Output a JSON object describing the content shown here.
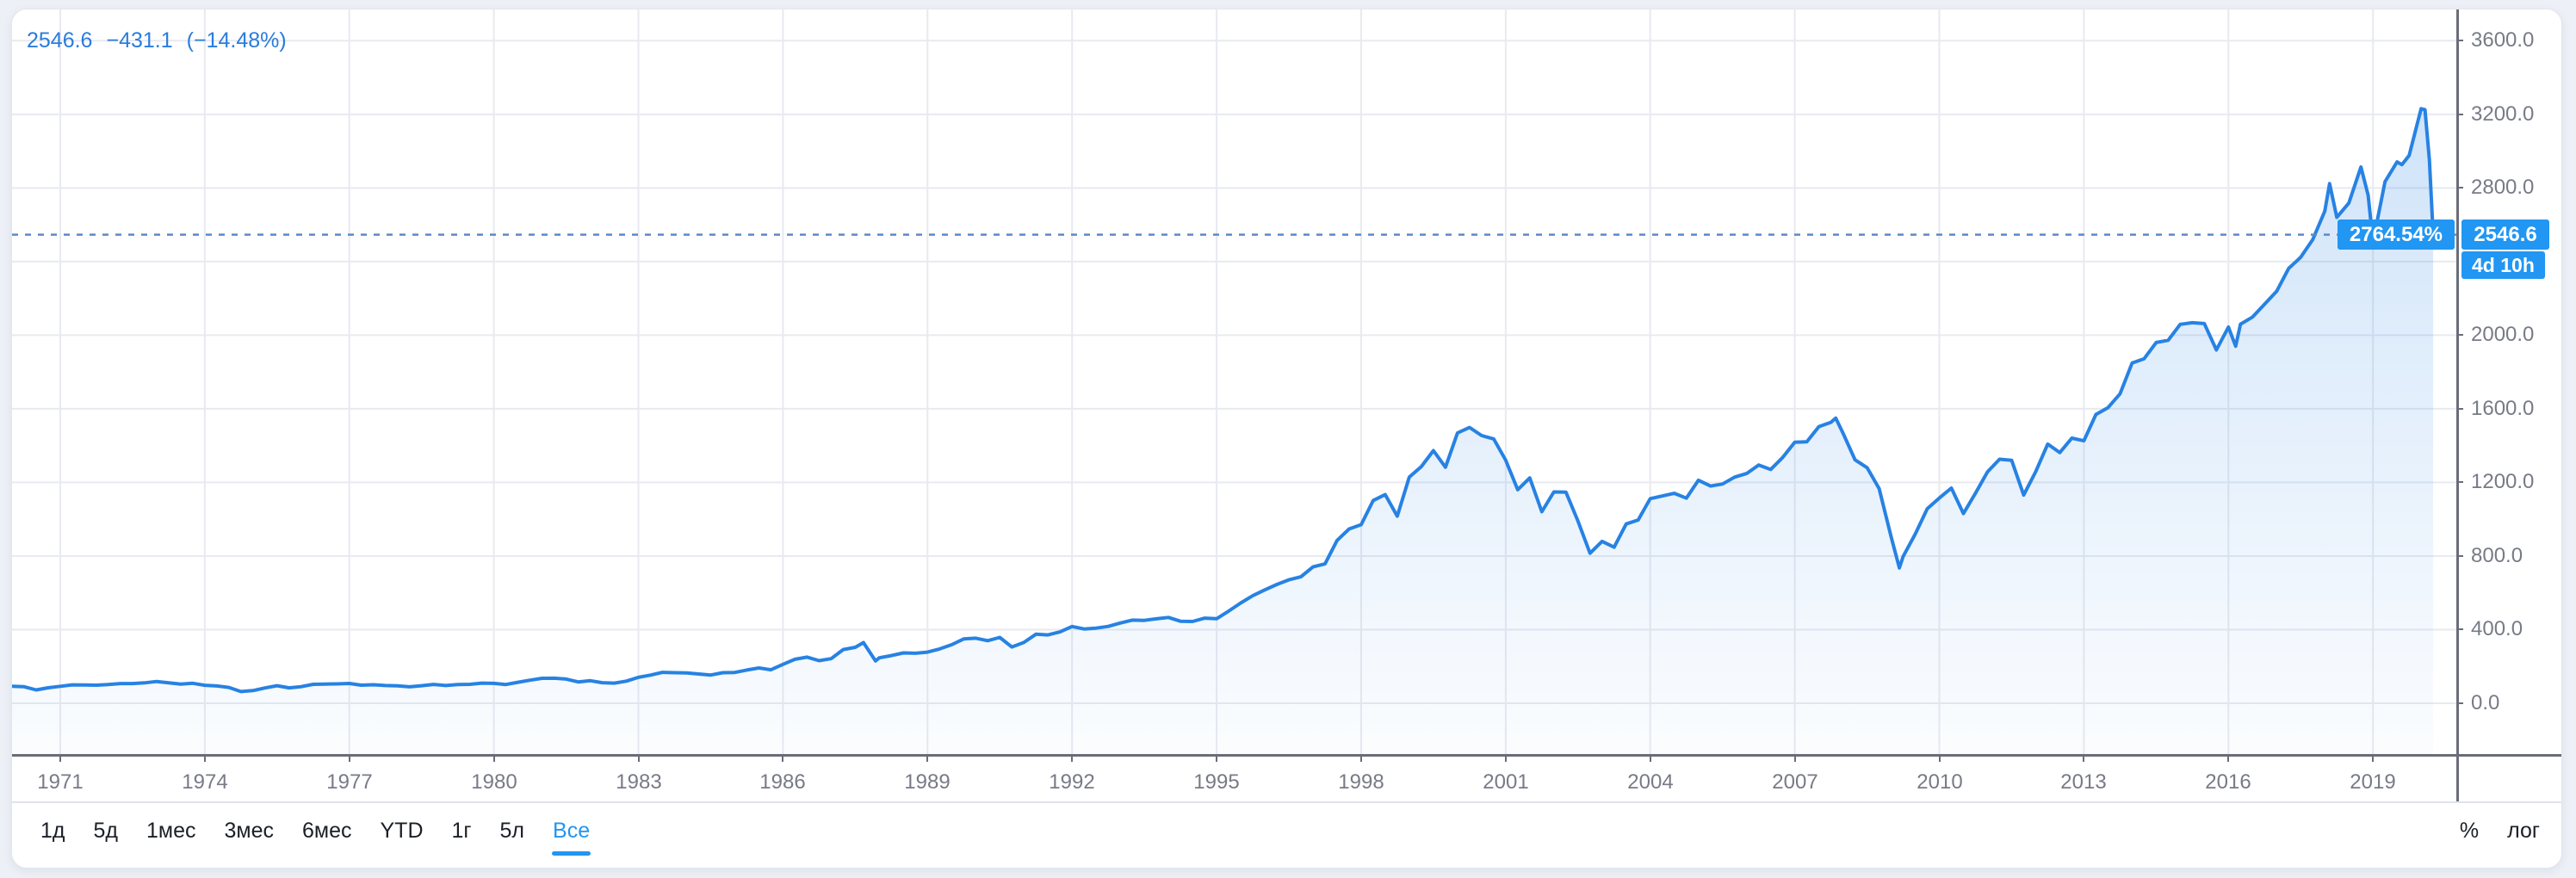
{
  "header": {
    "legend": {
      "price": "2546.6",
      "change": "−431.1",
      "change_pct": "(−14.48%)"
    },
    "legend_color": "#2a7cdd"
  },
  "price_scale": {
    "visible_ticks": [
      {
        "value": 3600,
        "label": "3600.0"
      },
      {
        "value": 3200,
        "label": "3200.0"
      },
      {
        "value": 2800,
        "label": "2800.0"
      },
      {
        "value": 2000,
        "label": "2000.0"
      },
      {
        "value": 1600,
        "label": "1600.0"
      },
      {
        "value": 1200,
        "label": "1200.0"
      },
      {
        "value": 800,
        "label": "800.0"
      },
      {
        "value": 400,
        "label": "400.0"
      },
      {
        "value": 0,
        "label": "0.0"
      }
    ],
    "gridline_values": [
      0,
      400,
      800,
      1200,
      1600,
      2000,
      2400,
      2800,
      3200,
      3600
    ],
    "current": {
      "value": 2546.6,
      "label": "2546.6",
      "pct_label": "2764.54%",
      "countdown": "4d 10h"
    }
  },
  "time_scale": {
    "years": [
      1971,
      1974,
      1977,
      1980,
      1983,
      1986,
      1989,
      1992,
      1995,
      1998,
      2001,
      2004,
      2007,
      2010,
      2013,
      2016,
      2019
    ]
  },
  "toolbar": {
    "ranges": [
      {
        "label": "1д",
        "active": false
      },
      {
        "label": "5д",
        "active": false
      },
      {
        "label": "1мес",
        "active": false
      },
      {
        "label": "3мес",
        "active": false
      },
      {
        "label": "6мес",
        "active": false
      },
      {
        "label": "YTD",
        "active": false
      },
      {
        "label": "1г",
        "active": false
      },
      {
        "label": "5л",
        "active": false
      },
      {
        "label": "Все",
        "active": true
      }
    ],
    "percent_label": "%",
    "log_label": "лог"
  },
  "colors": {
    "accent": "#2196f3",
    "line": "#2782e3",
    "fill_top": "rgba(39,130,227,0.22)",
    "fill_bottom": "rgba(39,130,227,0.02)",
    "dotted_price_line": "#5b8ac9",
    "grid": "#e8eaf0",
    "axis": "#6a6d78",
    "axis_text": "#787b86",
    "toolbar_text": "#1b1f27",
    "legend_text": "#2a7cdd"
  },
  "chart_data": {
    "type": "area",
    "title": "",
    "xlabel": "",
    "ylabel": "",
    "xlim": [
      1970.0,
      2020.73
    ],
    "ylim": [
      -276,
      3770
    ],
    "x_gridline_years": [
      1971,
      1974,
      1977,
      1980,
      1983,
      1986,
      1989,
      1992,
      1995,
      1998,
      2001,
      2004,
      2007,
      2010,
      2013,
      2016,
      2019
    ],
    "y_gridline_values": [
      0,
      400,
      800,
      1200,
      1600,
      2000,
      2400,
      2800,
      3200,
      3600
    ],
    "legend_position": "top-left",
    "grid": true,
    "current_price": 2546.6,
    "series": [
      {
        "name": "price",
        "points": [
          [
            1970.0,
            92.1
          ],
          [
            1970.25,
            89.6
          ],
          [
            1970.5,
            72.7
          ],
          [
            1970.75,
            84.2
          ],
          [
            1971.0,
            92.2
          ],
          [
            1971.25,
            100.3
          ],
          [
            1971.5,
            99.7
          ],
          [
            1971.75,
            98.3
          ],
          [
            1972.0,
            102.1
          ],
          [
            1972.25,
            107.2
          ],
          [
            1972.5,
            107.1
          ],
          [
            1972.75,
            110.6
          ],
          [
            1973.0,
            118.1
          ],
          [
            1973.25,
            111.5
          ],
          [
            1973.5,
            104.3
          ],
          [
            1973.75,
            108.4
          ],
          [
            1974.0,
            97.6
          ],
          [
            1974.25,
            93.9
          ],
          [
            1974.5,
            86.0
          ],
          [
            1974.75,
            63.5
          ],
          [
            1975.0,
            68.6
          ],
          [
            1975.25,
            83.4
          ],
          [
            1975.5,
            95.2
          ],
          [
            1975.75,
            83.9
          ],
          [
            1976.0,
            90.2
          ],
          [
            1976.25,
            102.8
          ],
          [
            1976.5,
            104.3
          ],
          [
            1976.75,
            105.2
          ],
          [
            1977.0,
            107.5
          ],
          [
            1977.25,
            98.4
          ],
          [
            1977.5,
            100.5
          ],
          [
            1977.75,
            96.5
          ],
          [
            1978.0,
            95.1
          ],
          [
            1978.25,
            89.2
          ],
          [
            1978.5,
            95.5
          ],
          [
            1978.75,
            102.5
          ],
          [
            1979.0,
            96.1
          ],
          [
            1979.25,
            101.6
          ],
          [
            1979.5,
            102.9
          ],
          [
            1979.75,
            109.3
          ],
          [
            1980.0,
            107.9
          ],
          [
            1980.25,
            102.1
          ],
          [
            1980.5,
            114.2
          ],
          [
            1980.75,
            125.5
          ],
          [
            1981.0,
            135.8
          ],
          [
            1981.25,
            136.0
          ],
          [
            1981.5,
            131.2
          ],
          [
            1981.75,
            116.2
          ],
          [
            1982.0,
            122.6
          ],
          [
            1982.25,
            111.9
          ],
          [
            1982.5,
            109.6
          ],
          [
            1982.75,
            120.4
          ],
          [
            1983.0,
            140.6
          ],
          [
            1983.25,
            152.9
          ],
          [
            1983.5,
            168.1
          ],
          [
            1983.75,
            166.1
          ],
          [
            1984.0,
            164.9
          ],
          [
            1984.25,
            159.2
          ],
          [
            1984.5,
            153.2
          ],
          [
            1984.75,
            166.1
          ],
          [
            1985.0,
            167.2
          ],
          [
            1985.25,
            180.7
          ],
          [
            1985.5,
            191.9
          ],
          [
            1985.75,
            182.1
          ],
          [
            1986.0,
            211.3
          ],
          [
            1986.25,
            238.9
          ],
          [
            1986.5,
            250.8
          ],
          [
            1986.75,
            231.3
          ],
          [
            1987.0,
            242.2
          ],
          [
            1987.25,
            291.7
          ],
          [
            1987.5,
            304.0
          ],
          [
            1987.67,
            329.8
          ],
          [
            1987.92,
            230.3
          ],
          [
            1988.0,
            247.1
          ],
          [
            1988.25,
            258.9
          ],
          [
            1988.5,
            273.5
          ],
          [
            1988.75,
            271.9
          ],
          [
            1989.0,
            277.7
          ],
          [
            1989.25,
            294.9
          ],
          [
            1989.5,
            318.0
          ],
          [
            1989.75,
            349.2
          ],
          [
            1990.0,
            353.4
          ],
          [
            1990.25,
            339.9
          ],
          [
            1990.5,
            358.0
          ],
          [
            1990.75,
            306.1
          ],
          [
            1991.0,
            330.2
          ],
          [
            1991.25,
            375.2
          ],
          [
            1991.5,
            371.2
          ],
          [
            1991.75,
            387.9
          ],
          [
            1992.0,
            417.1
          ],
          [
            1992.25,
            403.7
          ],
          [
            1992.5,
            408.1
          ],
          [
            1992.75,
            417.8
          ],
          [
            1993.0,
            435.7
          ],
          [
            1993.25,
            451.7
          ],
          [
            1993.5,
            450.5
          ],
          [
            1993.75,
            458.9
          ],
          [
            1994.0,
            466.4
          ],
          [
            1994.25,
            445.8
          ],
          [
            1994.5,
            444.3
          ],
          [
            1994.75,
            462.7
          ],
          [
            1995.0,
            459.3
          ],
          [
            1995.25,
            500.7
          ],
          [
            1995.5,
            544.8
          ],
          [
            1995.75,
            584.4
          ],
          [
            1996.0,
            615.9
          ],
          [
            1996.25,
            645.5
          ],
          [
            1996.5,
            670.6
          ],
          [
            1996.75,
            687.3
          ],
          [
            1997.0,
            740.7
          ],
          [
            1997.25,
            757.1
          ],
          [
            1997.5,
            885.1
          ],
          [
            1997.75,
            947.3
          ],
          [
            1998.0,
            970.4
          ],
          [
            1998.25,
            1101.8
          ],
          [
            1998.5,
            1133.8
          ],
          [
            1998.75,
            1017.0
          ],
          [
            1999.0,
            1229.2
          ],
          [
            1999.25,
            1286.4
          ],
          [
            1999.5,
            1372.7
          ],
          [
            1999.75,
            1282.7
          ],
          [
            2000.0,
            1469.3
          ],
          [
            2000.25,
            1498.6
          ],
          [
            2000.5,
            1454.6
          ],
          [
            2000.75,
            1436.5
          ],
          [
            2001.0,
            1320.3
          ],
          [
            2001.25,
            1160.3
          ],
          [
            2001.5,
            1224.4
          ],
          [
            2001.75,
            1040.9
          ],
          [
            2002.0,
            1148.1
          ],
          [
            2002.25,
            1147.4
          ],
          [
            2002.5,
            989.8
          ],
          [
            2002.75,
            815.3
          ],
          [
            2003.0,
            879.8
          ],
          [
            2003.25,
            848.2
          ],
          [
            2003.5,
            974.5
          ],
          [
            2003.75,
            996.0
          ],
          [
            2004.0,
            1111.9
          ],
          [
            2004.25,
            1126.2
          ],
          [
            2004.5,
            1140.8
          ],
          [
            2004.75,
            1114.6
          ],
          [
            2005.0,
            1211.9
          ],
          [
            2005.25,
            1180.6
          ],
          [
            2005.5,
            1191.3
          ],
          [
            2005.75,
            1228.8
          ],
          [
            2006.0,
            1248.3
          ],
          [
            2006.25,
            1294.9
          ],
          [
            2006.5,
            1270.2
          ],
          [
            2006.75,
            1335.9
          ],
          [
            2007.0,
            1418.3
          ],
          [
            2007.25,
            1420.9
          ],
          [
            2007.5,
            1503.4
          ],
          [
            2007.75,
            1526.8
          ],
          [
            2007.85,
            1549.4
          ],
          [
            2008.0,
            1468.4
          ],
          [
            2008.25,
            1322.7
          ],
          [
            2008.5,
            1280.0
          ],
          [
            2008.75,
            1166.4
          ],
          [
            2009.0,
            903.3
          ],
          [
            2009.17,
            735.1
          ],
          [
            2009.25,
            797.9
          ],
          [
            2009.5,
            919.3
          ],
          [
            2009.75,
            1057.1
          ],
          [
            2010.0,
            1115.1
          ],
          [
            2010.25,
            1169.4
          ],
          [
            2010.5,
            1030.7
          ],
          [
            2010.75,
            1141.2
          ],
          [
            2011.0,
            1257.6
          ],
          [
            2011.25,
            1325.8
          ],
          [
            2011.5,
            1320.6
          ],
          [
            2011.75,
            1131.4
          ],
          [
            2012.0,
            1257.6
          ],
          [
            2012.25,
            1408.5
          ],
          [
            2012.5,
            1362.2
          ],
          [
            2012.75,
            1440.7
          ],
          [
            2013.0,
            1426.2
          ],
          [
            2013.25,
            1569.2
          ],
          [
            2013.5,
            1606.3
          ],
          [
            2013.75,
            1681.5
          ],
          [
            2014.0,
            1848.4
          ],
          [
            2014.25,
            1872.3
          ],
          [
            2014.5,
            1960.2
          ],
          [
            2014.75,
            1972.3
          ],
          [
            2015.0,
            2058.9
          ],
          [
            2015.25,
            2067.9
          ],
          [
            2015.5,
            2063.1
          ],
          [
            2015.75,
            1920.0
          ],
          [
            2016.0,
            2043.9
          ],
          [
            2016.15,
            1940.2
          ],
          [
            2016.25,
            2059.7
          ],
          [
            2016.5,
            2098.9
          ],
          [
            2016.75,
            2168.3
          ],
          [
            2017.0,
            2238.8
          ],
          [
            2017.25,
            2362.7
          ],
          [
            2017.5,
            2423.4
          ],
          [
            2017.75,
            2519.4
          ],
          [
            2018.0,
            2673.6
          ],
          [
            2018.1,
            2823.8
          ],
          [
            2018.25,
            2640.9
          ],
          [
            2018.5,
            2718.4
          ],
          [
            2018.75,
            2914.0
          ],
          [
            2018.9,
            2760.2
          ],
          [
            2019.0,
            2506.9
          ],
          [
            2019.25,
            2834.4
          ],
          [
            2019.5,
            2941.8
          ],
          [
            2019.6,
            2926.5
          ],
          [
            2019.75,
            2976.7
          ],
          [
            2020.0,
            3230.8
          ],
          [
            2020.08,
            3225.5
          ],
          [
            2020.17,
            2954.2
          ],
          [
            2020.25,
            2546.6
          ]
        ]
      }
    ]
  }
}
